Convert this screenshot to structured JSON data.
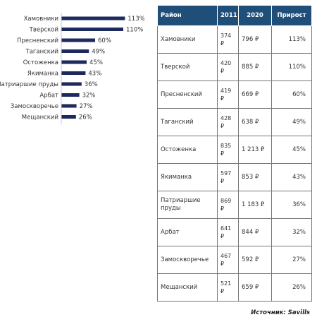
{
  "chart_data": {
    "type": "bar",
    "orientation": "horizontal",
    "categories": [
      "Хамовники",
      "Тверской",
      "Пресненский",
      "Таганский",
      "Остоженка",
      "Якиманка",
      "Патриаршие пруды",
      "Арбат",
      "Замоскворечье",
      "Мещанский"
    ],
    "values": [
      113,
      110,
      60,
      49,
      45,
      43,
      36,
      32,
      27,
      26
    ],
    "value_labels": [
      "113%",
      "110%",
      "60%",
      "49%",
      "45%",
      "43%",
      "36%",
      "32%",
      "27%",
      "26%"
    ],
    "unit": "%",
    "xlim": [
      0,
      120
    ],
    "bar_color": "#1c2a5e",
    "grid": false,
    "legend": "none"
  },
  "table": {
    "headers": [
      "Район",
      "2011",
      "2020",
      "Прирост"
    ],
    "rows": [
      [
        "Хамовники",
        "374 ₽",
        "796 ₽",
        "113%"
      ],
      [
        "Тверской",
        "420 ₽",
        "885 ₽",
        "110%"
      ],
      [
        "Пресненский",
        "419 ₽",
        "669 ₽",
        "60%"
      ],
      [
        "Таганский",
        "428 ₽",
        "638 ₽",
        "49%"
      ],
      [
        "Остоженка",
        "835 ₽",
        "1 213 ₽",
        "45%"
      ],
      [
        "Якиманка",
        "597 ₽",
        "853 ₽",
        "43%"
      ],
      [
        "Патриаршие пруды",
        "869 ₽",
        "1 183 ₽",
        "36%"
      ],
      [
        "Арбат",
        "641 ₽",
        "844 ₽",
        "32%"
      ],
      [
        "Замоскворечье",
        "467 ₽",
        "592 ₽",
        "27%"
      ],
      [
        "Мещанский",
        "521 ₽",
        "659 ₽",
        "26%"
      ]
    ],
    "header_color": "#1f4e79"
  },
  "source": "Источник: Savills"
}
